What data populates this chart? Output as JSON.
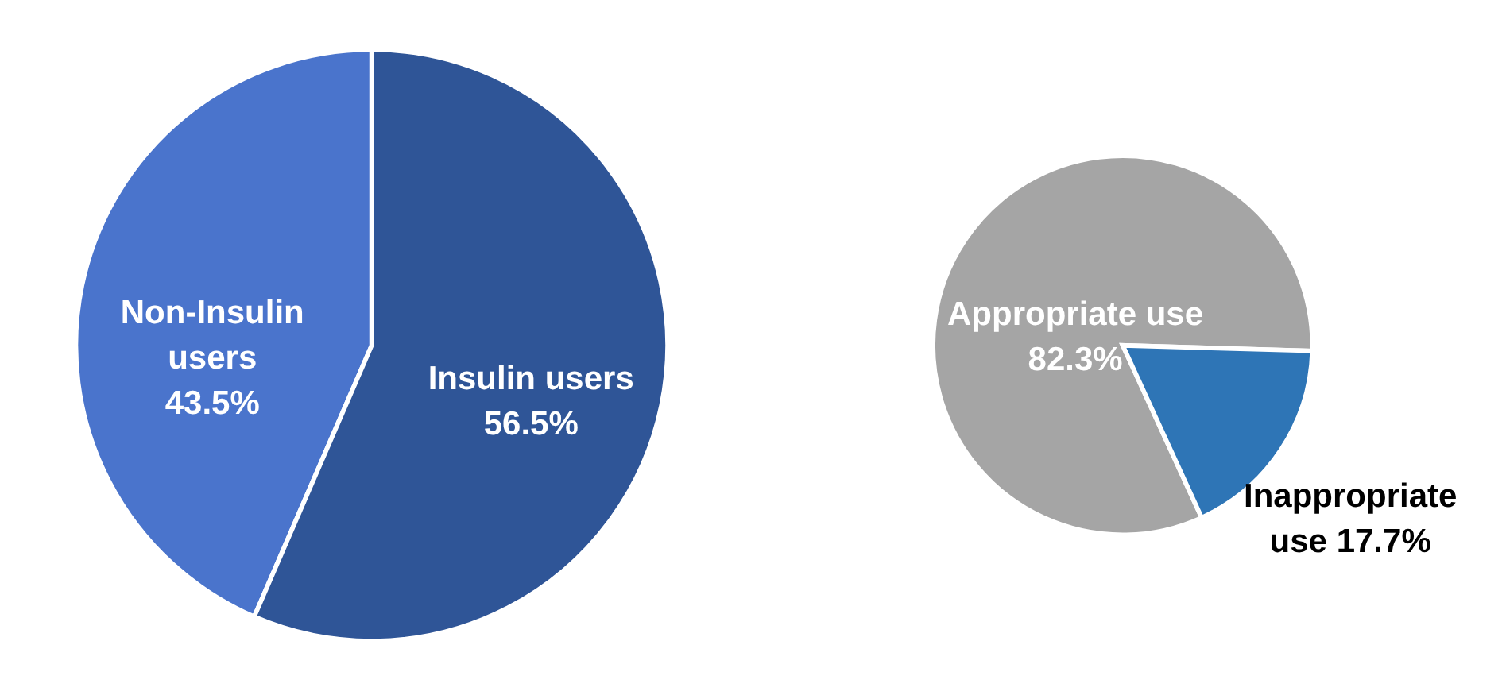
{
  "chart_data": [
    {
      "type": "pie",
      "categories": [
        "Non-Insulin users",
        "Insulin users"
      ],
      "values": [
        43.5,
        56.5
      ],
      "value_labels": [
        "43.5%",
        "56.5%"
      ],
      "colors": [
        "#4a74cc",
        "#2f5597"
      ]
    },
    {
      "type": "pie",
      "categories": [
        "Appropriate use",
        "Inappropriate use"
      ],
      "values": [
        82.3,
        17.7
      ],
      "value_labels": [
        "82.3%",
        "17.7%"
      ],
      "colors": [
        "#a5a5a5",
        "#2e75b6"
      ]
    }
  ]
}
